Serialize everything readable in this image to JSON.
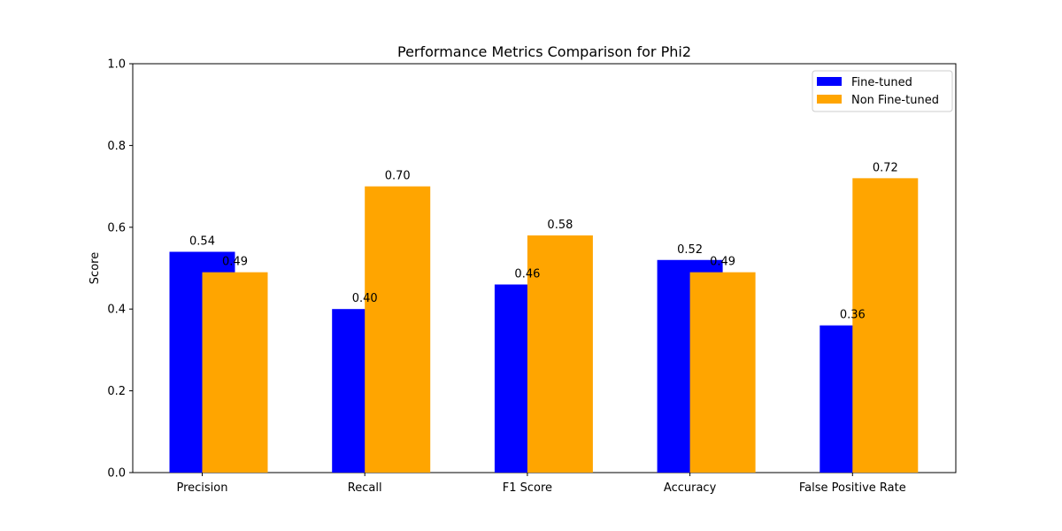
{
  "chart_data": {
    "type": "bar",
    "title": "Performance Metrics Comparison for Phi2",
    "xlabel": "",
    "ylabel": "Score",
    "categories": [
      "Precision",
      "Recall",
      "F1 Score",
      "Accuracy",
      "False Positive Rate"
    ],
    "series": [
      {
        "name": "Fine-tuned",
        "color": "#0000ff",
        "values": [
          0.54,
          0.4,
          0.46,
          0.52,
          0.36
        ],
        "labels": [
          "0.54",
          "0.40",
          "0.46",
          "0.52",
          "0.36"
        ]
      },
      {
        "name": "Non Fine-tuned",
        "color": "#ffa500",
        "values": [
          0.49,
          0.7,
          0.58,
          0.49,
          0.72
        ],
        "labels": [
          "0.49",
          "0.70",
          "0.58",
          "0.49",
          "0.72"
        ]
      }
    ],
    "ylim": [
      0,
      1.0
    ],
    "yticks": [
      "0.0",
      "0.2",
      "0.4",
      "0.6",
      "0.8",
      "1.0"
    ],
    "grid": false,
    "legend_position": "top-right"
  }
}
